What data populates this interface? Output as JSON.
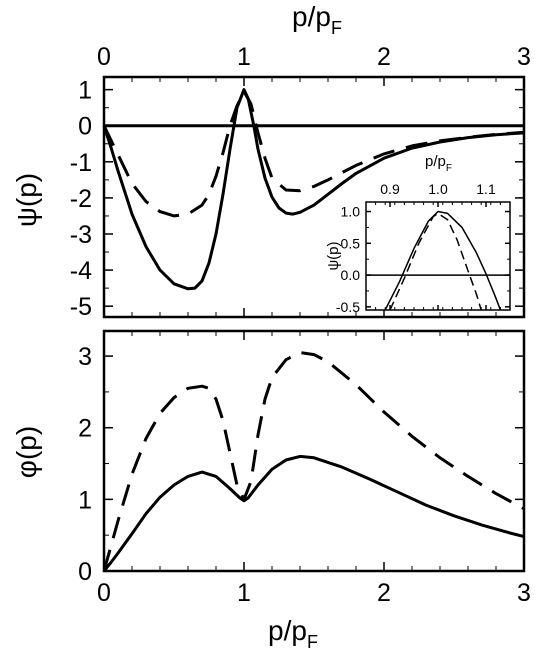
{
  "chart_data": [
    {
      "type": "line",
      "title": "",
      "xlabel": "p/p",
      "xlabel_sub": "F",
      "ylabel": "ψ(p)",
      "xlim": [
        0,
        3
      ],
      "ylim": [
        -5.3,
        1.35
      ],
      "x_ticks": [
        0,
        1,
        2,
        3
      ],
      "y_ticks": [
        1,
        0,
        -1,
        -2,
        -3,
        -4,
        -5
      ],
      "x_axis_position": "top",
      "grid": false,
      "legend": "none",
      "series": [
        {
          "style": "solid",
          "color": "#000000",
          "points": [
            [
              0,
              0
            ],
            [
              0.05,
              -0.6
            ],
            [
              0.1,
              -1.25
            ],
            [
              0.2,
              -2.45
            ],
            [
              0.3,
              -3.35
            ],
            [
              0.4,
              -4.0
            ],
            [
              0.5,
              -4.38
            ],
            [
              0.6,
              -4.52
            ],
            [
              0.65,
              -4.5
            ],
            [
              0.7,
              -4.3
            ],
            [
              0.75,
              -3.8
            ],
            [
              0.8,
              -3.0
            ],
            [
              0.85,
              -1.9
            ],
            [
              0.9,
              -0.65
            ],
            [
              0.95,
              0.5
            ],
            [
              1.0,
              1.0
            ],
            [
              1.03,
              0.75
            ],
            [
              1.07,
              0.0
            ],
            [
              1.1,
              -0.65
            ],
            [
              1.15,
              -1.45
            ],
            [
              1.2,
              -1.98
            ],
            [
              1.25,
              -2.28
            ],
            [
              1.3,
              -2.42
            ],
            [
              1.35,
              -2.45
            ],
            [
              1.4,
              -2.4
            ],
            [
              1.5,
              -2.2
            ],
            [
              1.6,
              -1.9
            ],
            [
              1.7,
              -1.6
            ],
            [
              1.8,
              -1.32
            ],
            [
              2.0,
              -0.9
            ],
            [
              2.2,
              -0.62
            ],
            [
              2.4,
              -0.45
            ],
            [
              2.6,
              -0.33
            ],
            [
              2.8,
              -0.25
            ],
            [
              3.0,
              -0.2
            ]
          ]
        },
        {
          "style": "dashed",
          "color": "#000000",
          "points": [
            [
              0,
              0
            ],
            [
              0.1,
              -0.8
            ],
            [
              0.2,
              -1.6
            ],
            [
              0.3,
              -2.1
            ],
            [
              0.4,
              -2.38
            ],
            [
              0.5,
              -2.5
            ],
            [
              0.6,
              -2.45
            ],
            [
              0.7,
              -2.2
            ],
            [
              0.75,
              -1.9
            ],
            [
              0.8,
              -1.4
            ],
            [
              0.85,
              -0.75
            ],
            [
              0.9,
              0.0
            ],
            [
              0.95,
              0.55
            ],
            [
              1.0,
              0.95
            ],
            [
              1.05,
              0.6
            ],
            [
              1.1,
              -0.2
            ],
            [
              1.15,
              -0.9
            ],
            [
              1.2,
              -1.45
            ],
            [
              1.3,
              -1.78
            ],
            [
              1.4,
              -1.8
            ],
            [
              1.5,
              -1.68
            ],
            [
              1.6,
              -1.5
            ],
            [
              1.7,
              -1.3
            ],
            [
              1.8,
              -1.1
            ],
            [
              2.0,
              -0.78
            ],
            [
              2.2,
              -0.56
            ],
            [
              2.4,
              -0.42
            ],
            [
              2.6,
              -0.32
            ],
            [
              2.8,
              -0.24
            ],
            [
              3.0,
              -0.18
            ]
          ]
        },
        {
          "style": "solid",
          "color": "#000000",
          "points": [
            [
              0,
              0
            ],
            [
              3,
              0
            ]
          ]
        }
      ]
    },
    {
      "type": "line",
      "title": "",
      "xlabel": "p/p",
      "xlabel_sub": "F",
      "ylabel": "ψ(p)",
      "xlim": [
        0.85,
        1.15
      ],
      "ylim": [
        -0.55,
        1.15
      ],
      "x_ticks": [
        0.9,
        1.0,
        1.1
      ],
      "x_tick_labels": [
        "0.9",
        "1.0",
        "1.1"
      ],
      "y_ticks": [
        1.0,
        0.5,
        0.0,
        -0.5
      ],
      "y_tick_labels": [
        "1.0",
        "0.5",
        "0.0",
        "-0.5"
      ],
      "x_axis_position": "top",
      "grid": false,
      "legend": "none",
      "series": [
        {
          "style": "solid",
          "color": "#000000",
          "points": [
            [
              0.89,
              -0.55
            ],
            [
              0.92,
              -0.1
            ],
            [
              0.95,
              0.42
            ],
            [
              0.98,
              0.85
            ],
            [
              1.0,
              1.0
            ],
            [
              1.02,
              0.97
            ],
            [
              1.05,
              0.75
            ],
            [
              1.08,
              0.35
            ],
            [
              1.1,
              0.02
            ],
            [
              1.12,
              -0.35
            ],
            [
              1.13,
              -0.55
            ]
          ]
        },
        {
          "style": "dashed",
          "color": "#000000",
          "points": [
            [
              0.9,
              -0.55
            ],
            [
              0.93,
              -0.05
            ],
            [
              0.96,
              0.5
            ],
            [
              0.99,
              0.92
            ],
            [
              1.0,
              0.97
            ],
            [
              1.02,
              0.87
            ],
            [
              1.04,
              0.55
            ],
            [
              1.06,
              0.12
            ],
            [
              1.08,
              -0.3
            ],
            [
              1.09,
              -0.55
            ]
          ]
        },
        {
          "style": "solid",
          "color": "#000000",
          "points": [
            [
              0.85,
              0
            ],
            [
              1.15,
              0
            ]
          ]
        }
      ]
    },
    {
      "type": "line",
      "title": "",
      "xlabel": "p/p",
      "xlabel_sub": "F",
      "ylabel": "φ(p)",
      "xlim": [
        0,
        3
      ],
      "ylim": [
        0,
        3.35
      ],
      "x_ticks": [
        0,
        1,
        2,
        3
      ],
      "y_ticks": [
        0,
        1,
        2,
        3
      ],
      "x_axis_position": "bottom",
      "grid": false,
      "legend": "none",
      "series": [
        {
          "style": "solid",
          "color": "#000000",
          "points": [
            [
              0,
              0
            ],
            [
              0.05,
              0.12
            ],
            [
              0.1,
              0.25
            ],
            [
              0.2,
              0.52
            ],
            [
              0.3,
              0.8
            ],
            [
              0.4,
              1.03
            ],
            [
              0.5,
              1.2
            ],
            [
              0.6,
              1.32
            ],
            [
              0.7,
              1.38
            ],
            [
              0.8,
              1.32
            ],
            [
              0.9,
              1.15
            ],
            [
              0.97,
              1.02
            ],
            [
              1.0,
              0.98
            ],
            [
              1.03,
              1.02
            ],
            [
              1.1,
              1.2
            ],
            [
              1.2,
              1.42
            ],
            [
              1.3,
              1.55
            ],
            [
              1.4,
              1.6
            ],
            [
              1.5,
              1.58
            ],
            [
              1.7,
              1.45
            ],
            [
              1.9,
              1.28
            ],
            [
              2.1,
              1.1
            ],
            [
              2.3,
              0.92
            ],
            [
              2.5,
              0.77
            ],
            [
              2.7,
              0.64
            ],
            [
              2.9,
              0.53
            ],
            [
              3.0,
              0.48
            ]
          ]
        },
        {
          "style": "dashed",
          "color": "#000000",
          "points": [
            [
              0,
              0
            ],
            [
              0.1,
              0.7
            ],
            [
              0.2,
              1.35
            ],
            [
              0.3,
              1.85
            ],
            [
              0.4,
              2.2
            ],
            [
              0.5,
              2.42
            ],
            [
              0.6,
              2.55
            ],
            [
              0.7,
              2.58
            ],
            [
              0.75,
              2.55
            ],
            [
              0.8,
              2.4
            ],
            [
              0.85,
              2.1
            ],
            [
              0.9,
              1.65
            ],
            [
              0.95,
              1.2
            ],
            [
              1.0,
              1.0
            ],
            [
              1.05,
              1.25
            ],
            [
              1.1,
              1.9
            ],
            [
              1.15,
              2.4
            ],
            [
              1.2,
              2.7
            ],
            [
              1.3,
              2.95
            ],
            [
              1.4,
              3.05
            ],
            [
              1.5,
              3.02
            ],
            [
              1.6,
              2.92
            ],
            [
              1.8,
              2.6
            ],
            [
              2.0,
              2.22
            ],
            [
              2.2,
              1.88
            ],
            [
              2.4,
              1.58
            ],
            [
              2.6,
              1.32
            ],
            [
              2.8,
              1.08
            ],
            [
              3.0,
              0.87
            ]
          ]
        }
      ]
    }
  ]
}
